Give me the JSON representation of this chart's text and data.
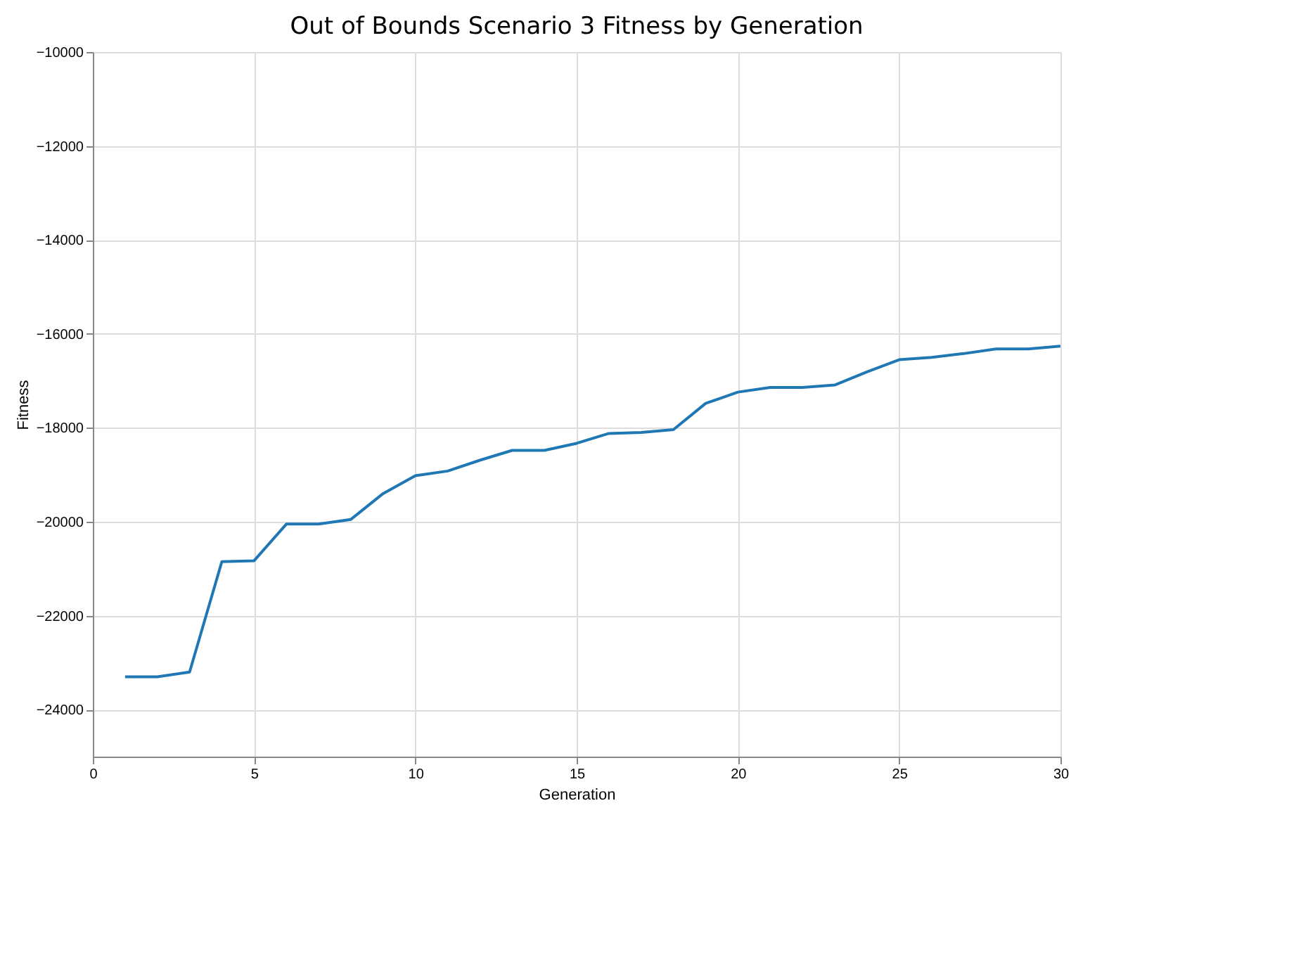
{
  "chart_data": {
    "type": "line",
    "title": "Out of Bounds Scenario 3 Fitness by Generation",
    "xlabel": "Generation",
    "ylabel": "Fitness",
    "x": [
      1,
      2,
      3,
      4,
      5,
      6,
      7,
      8,
      9,
      10,
      11,
      12,
      13,
      14,
      15,
      16,
      17,
      18,
      19,
      20,
      21,
      22,
      23,
      24,
      25,
      26,
      27,
      28,
      29,
      30
    ],
    "series": [
      {
        "color": "#1f77b4",
        "values": [
          -23300,
          -23300,
          -23200,
          -20850,
          -20830,
          -20050,
          -20050,
          -19950,
          -19400,
          -19020,
          -18920,
          -18690,
          -18480,
          -18480,
          -18330,
          -18120,
          -18100,
          -18040,
          -17480,
          -17240,
          -17140,
          -17140,
          -17090,
          -16810,
          -16550,
          -16500,
          -16420,
          -16320,
          -16320,
          -16260
        ]
      }
    ],
    "xlim": [
      0,
      30
    ],
    "xticks": [
      0,
      5,
      10,
      15,
      20,
      25,
      30
    ],
    "ylim": [
      -25000,
      -10000
    ],
    "yticks": [
      -24000,
      -22000,
      -20000,
      -18000,
      -16000,
      -14000,
      -12000,
      -10000
    ],
    "grid": true,
    "marker": "none",
    "line_style": "solid"
  }
}
